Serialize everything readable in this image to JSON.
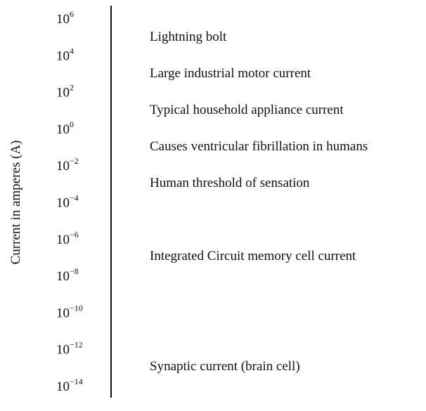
{
  "axis_label": "Current in amperes (A)",
  "ticks": [
    {
      "base": "10",
      "exponent": "6"
    },
    {
      "base": "10",
      "exponent": "4"
    },
    {
      "base": "10",
      "exponent": "2"
    },
    {
      "base": "10",
      "exponent": "0"
    },
    {
      "base": "10",
      "exponent": "−2"
    },
    {
      "base": "10",
      "exponent": "−4"
    },
    {
      "base": "10",
      "exponent": "−6"
    },
    {
      "base": "10",
      "exponent": "−8"
    },
    {
      "base": "10",
      "exponent": "−10"
    },
    {
      "base": "10",
      "exponent": "−12"
    },
    {
      "base": "10",
      "exponent": "−14"
    }
  ],
  "items": [
    "Lightning bolt",
    "Large industrial motor current",
    "Typical household appliance current",
    "Causes ventricular fibrillation in humans",
    "Human threshold of sensation",
    "Integrated Circuit memory cell current",
    "Synaptic current (brain cell)"
  ]
}
